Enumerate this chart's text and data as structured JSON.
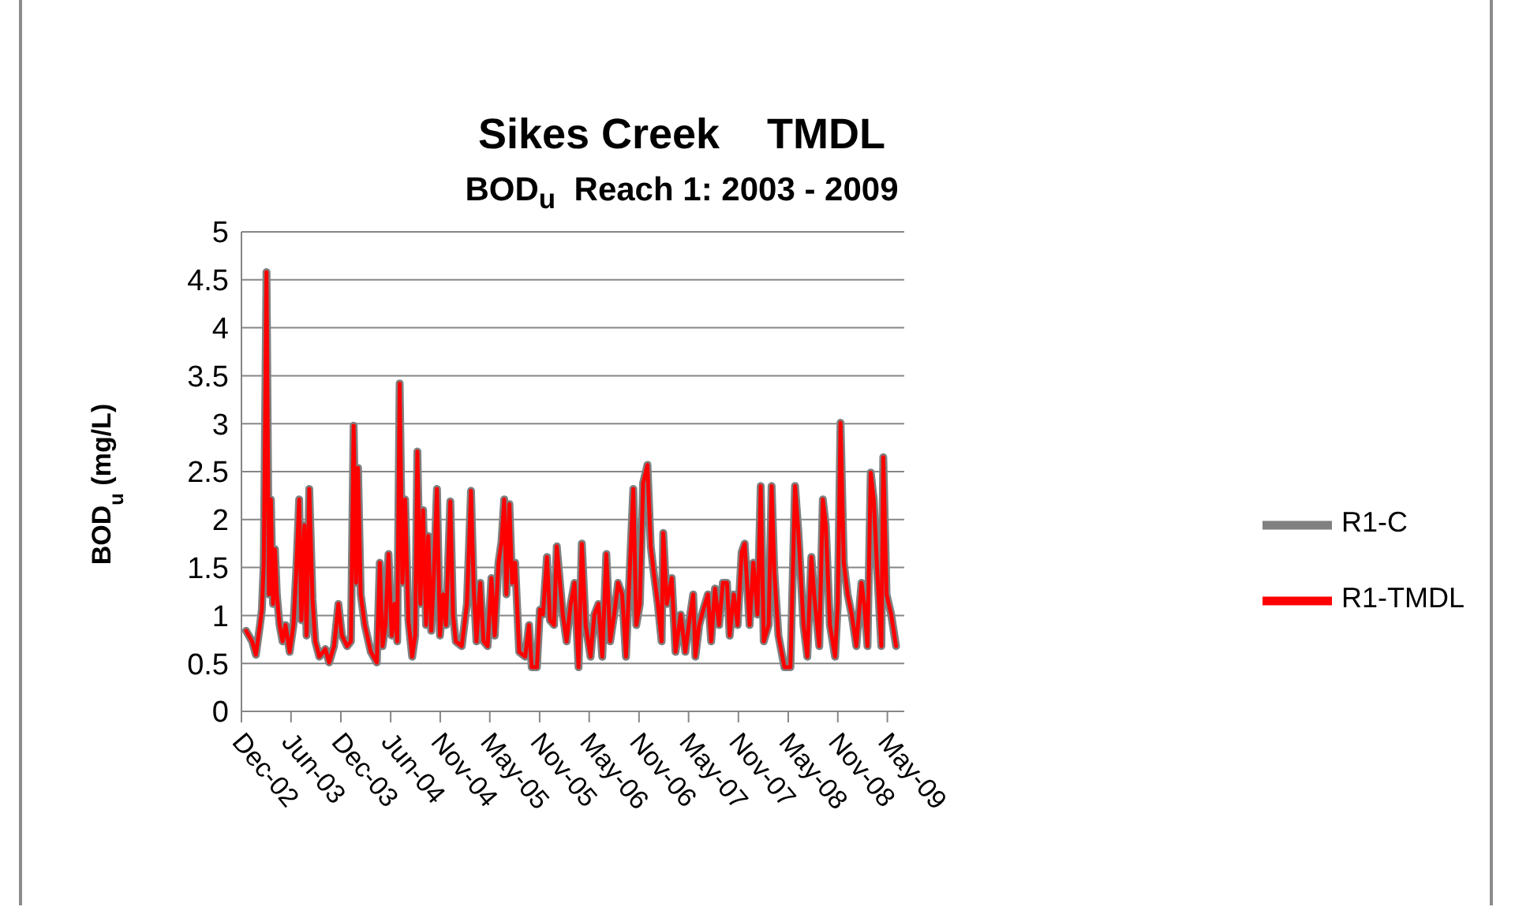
{
  "chart_data": {
    "type": "line",
    "title": "Sikes Creek    TMDL",
    "subtitle": "BOD$_{u}$  Reach 1: 2003 - 2009",
    "ylabel": "BOD$_{u}$ (mg/L)",
    "x": [
      "2002-12-18",
      "2003-01-09",
      "2003-01-23",
      "2003-02-07",
      "2003-02-14",
      "2003-02-21",
      "2003-03-03",
      "2003-03-12",
      "2003-03-19",
      "2003-03-27",
      "2003-04-03",
      "2003-04-10",
      "2003-04-20",
      "2003-05-01",
      "2003-05-12",
      "2003-05-27",
      "2003-06-10",
      "2003-06-20",
      "2003-07-01",
      "2003-07-09",
      "2003-07-20",
      "2003-07-28",
      "2003-08-07",
      "2003-08-19",
      "2003-08-29",
      "2003-09-13",
      "2003-10-05",
      "2003-10-19",
      "2003-11-06",
      "2003-11-22",
      "2003-12-05",
      "2003-12-24",
      "2004-01-07",
      "2004-01-17",
      "2004-01-26",
      "2004-02-02",
      "2004-02-12",
      "2004-02-27",
      "2004-03-20",
      "2004-04-11",
      "2004-04-22",
      "2004-05-02",
      "2004-05-13",
      "2004-05-24",
      "2004-06-05",
      "2004-06-15",
      "2004-06-25",
      "2004-07-04",
      "2004-07-14",
      "2004-07-24",
      "2004-08-05",
      "2004-08-19",
      "2004-08-30",
      "2004-09-07",
      "2004-09-18",
      "2004-09-28",
      "2004-10-09",
      "2004-10-17",
      "2004-10-28",
      "2004-11-07",
      "2004-11-18",
      "2004-11-29",
      "2004-12-11",
      "2004-12-21",
      "2005-01-06",
      "2005-01-16",
      "2005-01-26",
      "2005-02-17",
      "2005-03-08",
      "2005-03-23",
      "2005-04-02",
      "2005-04-12",
      "2005-04-26",
      "2005-05-08",
      "2005-05-23",
      "2005-06-06",
      "2005-06-18",
      "2005-07-02",
      "2005-07-13",
      "2005-07-23",
      "2005-07-31",
      "2005-08-11",
      "2005-08-21",
      "2005-09-01",
      "2005-09-16",
      "2005-10-08",
      "2005-10-22",
      "2005-11-01",
      "2005-11-20",
      "2005-12-01",
      "2005-12-12",
      "2005-12-27",
      "2006-01-07",
      "2006-01-22",
      "2006-02-01",
      "2006-02-23",
      "2006-03-09",
      "2006-03-24",
      "2006-04-07",
      "2006-04-22",
      "2006-05-04",
      "2006-05-18",
      "2006-06-05",
      "2006-06-19",
      "2006-07-04",
      "2006-07-18",
      "2006-08-02",
      "2006-08-16",
      "2006-08-31",
      "2006-09-14",
      "2006-09-29",
      "2006-10-13",
      "2006-10-25",
      "2006-11-09",
      "2006-11-20",
      "2006-12-03",
      "2006-12-15",
      "2006-12-31",
      "2007-01-12",
      "2007-01-23",
      "2007-02-07",
      "2007-02-21",
      "2007-02-27",
      "2007-03-12",
      "2007-03-30",
      "2007-04-13",
      "2007-05-02",
      "2007-05-19",
      "2007-06-03",
      "2007-06-17",
      "2007-06-25",
      "2007-07-09",
      "2007-07-24",
      "2007-08-10",
      "2007-08-22",
      "2007-09-05",
      "2007-09-20",
      "2007-10-04",
      "2007-10-19",
      "2007-10-29",
      "2007-11-13",
      "2007-11-27",
      "2007-12-12",
      "2007-12-23",
      "2008-01-10",
      "2008-01-24",
      "2008-02-08",
      "2008-02-20",
      "2008-03-02",
      "2008-03-20",
      "2008-03-31",
      "2008-04-10",
      "2008-04-25",
      "2008-05-17",
      "2008-06-08",
      "2008-06-25",
      "2008-07-07",
      "2008-07-26",
      "2008-08-09",
      "2008-08-24",
      "2008-09-03",
      "2008-09-22",
      "2008-10-05",
      "2008-10-16",
      "2008-10-31",
      "2008-11-19",
      "2008-11-29",
      "2008-12-09",
      "2008-12-21",
      "2009-01-04",
      "2009-01-19",
      "2009-02-05",
      "2009-02-24",
      "2009-03-06",
      "2009-03-18",
      "2009-03-30",
      "2009-04-10",
      "2009-04-23",
      "2009-05-08",
      "2009-05-15",
      "2009-05-27",
      "2009-06-13",
      "2009-07-01"
    ],
    "series": [
      {
        "name": "R1-C",
        "color": "#808080",
        "values": [
          0.84,
          0.73,
          0.59,
          0.9,
          1.06,
          1.55,
          4.58,
          1.22,
          2.21,
          1.12,
          1.69,
          1.22,
          0.9,
          0.73,
          0.9,
          0.62,
          0.9,
          1.45,
          2.21,
          0.95,
          1.94,
          0.79,
          2.32,
          1.17,
          0.73,
          0.57,
          0.65,
          0.51,
          0.68,
          1.12,
          0.79,
          0.68,
          0.73,
          2.98,
          1.34,
          2.54,
          1.22,
          0.9,
          0.62,
          0.51,
          1.55,
          0.68,
          0.9,
          1.64,
          0.79,
          1.12,
          0.73,
          3.42,
          1.34,
          2.21,
          0.95,
          0.57,
          0.79,
          2.71,
          1.12,
          2.1,
          0.9,
          1.83,
          0.84,
          1.45,
          2.32,
          0.79,
          1.22,
          0.9,
          2.19,
          1.01,
          0.73,
          0.68,
          1.12,
          2.3,
          1.28,
          0.73,
          1.34,
          0.73,
          0.68,
          1.39,
          0.79,
          1.55,
          1.77,
          2.21,
          1.22,
          2.16,
          1.34,
          1.55,
          0.62,
          0.57,
          0.9,
          0.46,
          0.46,
          1.06,
          1.01,
          1.61,
          0.95,
          0.9,
          1.72,
          1.01,
          0.73,
          1.12,
          1.34,
          0.46,
          1.75,
          0.9,
          0.57,
          1.01,
          1.12,
          0.57,
          1.64,
          0.73,
          1.01,
          1.34,
          1.22,
          0.57,
          1.34,
          2.32,
          0.9,
          1.12,
          2.38,
          2.57,
          1.72,
          1.45,
          1.12,
          0.73,
          1.86,
          1.12,
          1.39,
          0.62,
          1.01,
          0.62,
          0.95,
          1.22,
          0.57,
          0.9,
          1.06,
          1.22,
          0.73,
          1.28,
          0.9,
          1.34,
          1.34,
          0.79,
          1.22,
          0.9,
          1.66,
          1.75,
          0.9,
          1.55,
          1.01,
          2.35,
          0.73,
          0.9,
          2.35,
          1.45,
          0.79,
          0.46,
          0.46,
          2.35,
          1.88,
          0.9,
          0.57,
          1.61,
          1.22,
          0.68,
          2.21,
          1.94,
          0.9,
          0.57,
          1.12,
          3.01,
          1.55,
          1.22,
          1.01,
          0.68,
          1.34,
          1.12,
          0.68,
          2.49,
          2.21,
          1.45,
          0.68,
          2.65,
          1.22,
          1.01,
          0.68
        ]
      },
      {
        "name": "R1-TMDL",
        "color": "#ff0000",
        "values": [
          0.84,
          0.73,
          0.59,
          0.9,
          1.06,
          1.55,
          4.58,
          1.22,
          2.21,
          1.12,
          1.69,
          1.22,
          0.9,
          0.73,
          0.9,
          0.62,
          0.9,
          1.45,
          2.21,
          0.95,
          1.94,
          0.79,
          2.32,
          1.17,
          0.73,
          0.57,
          0.65,
          0.51,
          0.68,
          1.12,
          0.79,
          0.68,
          0.73,
          2.98,
          1.34,
          2.54,
          1.22,
          0.9,
          0.62,
          0.51,
          1.55,
          0.68,
          0.9,
          1.64,
          0.79,
          1.12,
          0.73,
          3.42,
          1.34,
          2.21,
          0.95,
          0.57,
          0.79,
          2.71,
          1.12,
          2.1,
          0.9,
          1.83,
          0.84,
          1.45,
          2.32,
          0.79,
          1.22,
          0.9,
          2.19,
          1.01,
          0.73,
          0.68,
          1.12,
          2.3,
          1.28,
          0.73,
          1.34,
          0.73,
          0.68,
          1.39,
          0.79,
          1.55,
          1.77,
          2.21,
          1.22,
          2.16,
          1.34,
          1.55,
          0.62,
          0.57,
          0.9,
          0.46,
          0.46,
          1.06,
          1.01,
          1.61,
          0.95,
          0.9,
          1.72,
          1.01,
          0.73,
          1.12,
          1.34,
          0.46,
          1.75,
          0.9,
          0.57,
          1.01,
          1.12,
          0.57,
          1.64,
          0.73,
          1.01,
          1.34,
          1.22,
          0.57,
          1.34,
          2.32,
          0.9,
          1.12,
          2.38,
          2.57,
          1.72,
          1.45,
          1.12,
          0.73,
          1.86,
          1.12,
          1.39,
          0.62,
          1.01,
          0.62,
          0.95,
          1.22,
          0.57,
          0.9,
          1.06,
          1.22,
          0.73,
          1.28,
          0.9,
          1.34,
          1.34,
          0.79,
          1.22,
          0.9,
          1.66,
          1.75,
          0.9,
          1.55,
          1.01,
          2.35,
          0.73,
          0.9,
          2.35,
          1.45,
          0.79,
          0.46,
          0.46,
          2.35,
          1.88,
          0.9,
          0.57,
          1.61,
          1.22,
          0.68,
          2.21,
          1.94,
          0.9,
          0.57,
          1.12,
          3.01,
          1.55,
          1.22,
          1.01,
          0.68,
          1.34,
          1.12,
          0.68,
          2.49,
          2.21,
          1.45,
          0.68,
          2.65,
          1.22,
          1.01,
          0.68
        ]
      }
    ],
    "xlim": [
      "2002-12-01",
      "2009-07-31"
    ],
    "xticks": [
      {
        "value": "2002-12-01",
        "label": "Dec-02"
      },
      {
        "value": "2003-06-01",
        "label": "Jun-03"
      },
      {
        "value": "2003-12-01",
        "label": "Dec-03"
      },
      {
        "value": "2004-06-01",
        "label": "Jun-04"
      },
      {
        "value": "2004-11-30",
        "label": "Nov-04"
      },
      {
        "value": "2005-05-31",
        "label": "May-05"
      },
      {
        "value": "2005-11-30",
        "label": "Nov-05"
      },
      {
        "value": "2006-05-31",
        "label": "May-06"
      },
      {
        "value": "2006-11-30",
        "label": "Nov-06"
      },
      {
        "value": "2007-05-31",
        "label": "May-07"
      },
      {
        "value": "2007-11-30",
        "label": "Nov-07"
      },
      {
        "value": "2008-05-31",
        "label": "May-08"
      },
      {
        "value": "2008-11-29",
        "label": "Nov-08"
      },
      {
        "value": "2009-05-30",
        "label": "May-09"
      }
    ],
    "ylim": [
      0,
      5
    ],
    "yticks": [
      0,
      0.5,
      1,
      1.5,
      2,
      2.5,
      3,
      3.5,
      4,
      4.5,
      5
    ],
    "grid": "y",
    "legend": "right",
    "line_style": "solid"
  }
}
